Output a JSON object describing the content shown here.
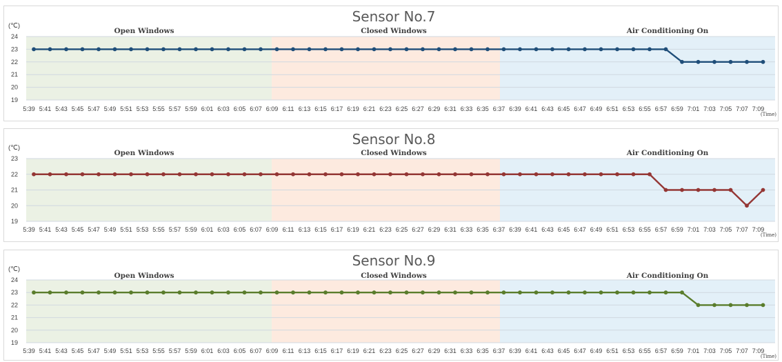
{
  "chart_data": [
    {
      "type": "line",
      "title": "Sensor No.7",
      "ylabel": "(℃)",
      "xlabel": "(Time)",
      "ylim": [
        19,
        24
      ],
      "yticks": [
        19,
        20,
        21,
        22,
        23,
        24
      ],
      "phases": [
        "Open Windows",
        "Closed Windows",
        "Air Conditioning On"
      ],
      "color": "#1f4e79",
      "x": [
        "5:39",
        "5:41",
        "5:43",
        "5:45",
        "5:47",
        "5:49",
        "5:51",
        "5:53",
        "5:55",
        "5:57",
        "5:59",
        "6:01",
        "6:03",
        "6:05",
        "6:07",
        "6:09",
        "6:11",
        "6:13",
        "6:15",
        "6:17",
        "6:19",
        "6:21",
        "6:23",
        "6:25",
        "6:27",
        "6:29",
        "6:31",
        "6:33",
        "6:35",
        "6:37",
        "6:39",
        "6:41",
        "6:43",
        "6:45",
        "6:47",
        "6:49",
        "6:51",
        "6:53",
        "6:55",
        "6:57",
        "6:59",
        "7:01",
        "7:03",
        "7:05",
        "7:07",
        "7:09"
      ],
      "values": [
        23,
        23,
        23,
        23,
        23,
        23,
        23,
        23,
        23,
        23,
        23,
        23,
        23,
        23,
        23,
        23,
        23,
        23,
        23,
        23,
        23,
        23,
        23,
        23,
        23,
        23,
        23,
        23,
        23,
        23,
        23,
        23,
        23,
        23,
        23,
        23,
        23,
        23,
        23,
        23,
        22,
        22,
        22,
        22,
        22,
        22
      ]
    },
    {
      "type": "line",
      "title": "Sensor No.8",
      "ylabel": "(℃)",
      "xlabel": "(Time)",
      "ylim": [
        19,
        23
      ],
      "yticks": [
        19,
        20,
        21,
        22,
        23
      ],
      "phases": [
        "Open Windows",
        "Closed Windows",
        "Air Conditioning On"
      ],
      "color": "#943634",
      "x": [
        "5:39",
        "5:41",
        "5:43",
        "5:45",
        "5:47",
        "5:49",
        "5:51",
        "5:53",
        "5:55",
        "5:57",
        "5:59",
        "6:01",
        "6:03",
        "6:05",
        "6:07",
        "6:09",
        "6:11",
        "6:13",
        "6:15",
        "6:17",
        "6:19",
        "6:21",
        "6:23",
        "6:25",
        "6:27",
        "6:29",
        "6:31",
        "6:33",
        "6:35",
        "6:37",
        "6:39",
        "6:41",
        "6:43",
        "6:45",
        "6:47",
        "6:49",
        "6:51",
        "6:53",
        "6:55",
        "6:57",
        "6:59",
        "7:01",
        "7:03",
        "7:05",
        "7:07",
        "7:09"
      ],
      "values": [
        22,
        22,
        22,
        22,
        22,
        22,
        22,
        22,
        22,
        22,
        22,
        22,
        22,
        22,
        22,
        22,
        22,
        22,
        22,
        22,
        22,
        22,
        22,
        22,
        22,
        22,
        22,
        22,
        22,
        22,
        22,
        22,
        22,
        22,
        22,
        22,
        22,
        22,
        22,
        21,
        21,
        21,
        21,
        21,
        20,
        21
      ]
    },
    {
      "type": "line",
      "title": "Sensor No.9",
      "ylabel": "(℃)",
      "xlabel": "(Time)",
      "ylim": [
        19,
        24
      ],
      "yticks": [
        19,
        20,
        21,
        22,
        23,
        24
      ],
      "phases": [
        "Open Windows",
        "Closed Windows",
        "Air Conditioning On"
      ],
      "color": "#5a7d2c",
      "x": [
        "5:39",
        "5:41",
        "5:43",
        "5:45",
        "5:47",
        "5:49",
        "5:51",
        "5:53",
        "5:55",
        "5:57",
        "5:59",
        "6:01",
        "6:03",
        "6:05",
        "6:07",
        "6:09",
        "6:11",
        "6:13",
        "6:15",
        "6:17",
        "6:19",
        "6:21",
        "6:23",
        "6:25",
        "6:27",
        "6:29",
        "6:31",
        "6:33",
        "6:35",
        "6:37",
        "6:39",
        "6:41",
        "6:43",
        "6:45",
        "6:47",
        "6:49",
        "6:51",
        "6:53",
        "6:55",
        "6:57",
        "6:59",
        "7:01",
        "7:03",
        "7:05",
        "7:07",
        "7:09"
      ],
      "values": [
        23,
        23,
        23,
        23,
        23,
        23,
        23,
        23,
        23,
        23,
        23,
        23,
        23,
        23,
        23,
        23,
        23,
        23,
        23,
        23,
        23,
        23,
        23,
        23,
        23,
        23,
        23,
        23,
        23,
        23,
        23,
        23,
        23,
        23,
        23,
        23,
        23,
        23,
        23,
        23,
        23,
        22,
        22,
        22,
        22,
        22
      ]
    }
  ],
  "phase_colors": [
    "#ebf1e4",
    "#fdeadf",
    "#e3f0f8"
  ],
  "grid_color": "#d0d8e0"
}
